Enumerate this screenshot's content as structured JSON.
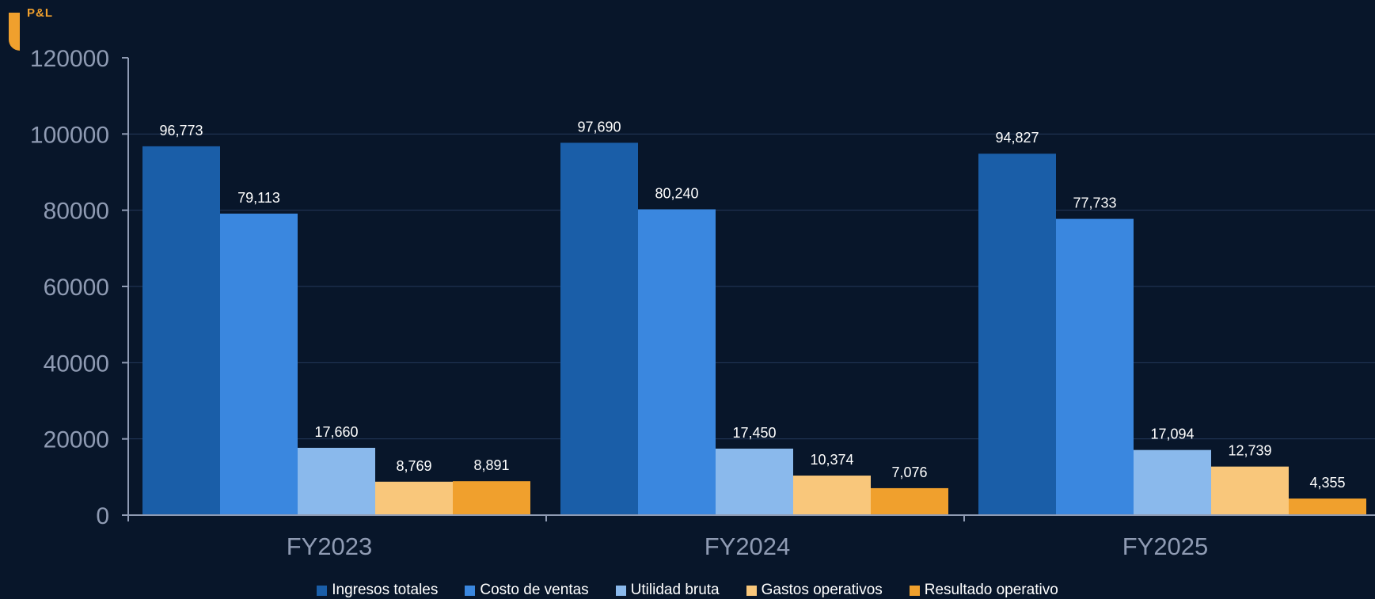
{
  "header": {
    "badge_label": "P&L"
  },
  "chart_data": {
    "type": "bar",
    "title": "",
    "xlabel": "",
    "ylabel": "",
    "categories": [
      "FY2023",
      "FY2024",
      "FY2025"
    ],
    "ylim": [
      0,
      120000
    ],
    "yticks": [
      0,
      20000,
      40000,
      60000,
      80000,
      100000,
      120000
    ],
    "ytick_labels": [
      "0",
      "20000",
      "40000",
      "60000",
      "80000",
      "100000",
      "120000"
    ],
    "grid": true,
    "legend_position": "bottom",
    "series": [
      {
        "name": "Ingresos totales",
        "color": "#1a5ea8",
        "values": [
          96773,
          97690,
          94827
        ],
        "labels": [
          "96,773",
          "97,690",
          "94,827"
        ]
      },
      {
        "name": "Costo de ventas",
        "color": "#3a87df",
        "values": [
          79113,
          80240,
          77733
        ],
        "labels": [
          "79,113",
          "80,240",
          "77,733"
        ]
      },
      {
        "name": "Utilidad bruta",
        "color": "#8ab9ec",
        "values": [
          17660,
          17450,
          17094
        ],
        "labels": [
          "17,660",
          "17,450",
          "17,094"
        ]
      },
      {
        "name": "Gastos operativos",
        "color": "#f9c77b",
        "values": [
          8769,
          10374,
          12739
        ],
        "labels": [
          "8,769",
          "10,374",
          "12,739"
        ]
      },
      {
        "name": "Resultado operativo",
        "color": "#f0a02d",
        "values": [
          8891,
          7076,
          4355
        ],
        "labels": [
          "8,891",
          "7,076",
          "4,355"
        ]
      }
    ]
  }
}
